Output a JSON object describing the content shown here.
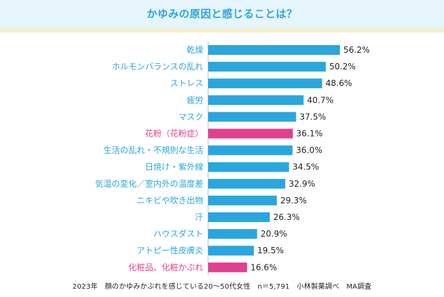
{
  "title": "かゆみの原因と感じることは？",
  "footnote": "2023年　顔のかゆみかぶれを感じている20～50代女性　n＝5,791　小林製薬調べ　MA調査",
  "colors": {
    "bar_default": "#2aa6dc",
    "bar_highlight": "#e0418e",
    "label_default": "#2aa6dc",
    "label_highlight": "#e0418e",
    "title": "#2aa6dc"
  },
  "chart_data": {
    "type": "bar",
    "orientation": "horizontal",
    "title": "かゆみの原因と感じることは？",
    "xlabel": "",
    "ylabel": "",
    "xlim": [
      0,
      100
    ],
    "grid": false,
    "unit": "%",
    "categories": [
      "乾燥",
      "ホルモンバランスの乱れ",
      "ストレス",
      "疲労",
      "マスク",
      "花粉（花粉症）",
      "生活の乱れ・不規則な生活",
      "日焼け・紫外線",
      "気温の変化／室内外の温度差",
      "ニキビや吹き出物",
      "汗",
      "ハウスダスト",
      "アトピー性皮膚炎",
      "化粧品、化粧かぶれ"
    ],
    "values": [
      56.2,
      50.2,
      48.6,
      40.7,
      37.5,
      36.1,
      36.0,
      34.5,
      32.9,
      29.3,
      26.3,
      20.9,
      19.5,
      16.6
    ],
    "value_labels": [
      "56.2%",
      "50.2%",
      "48.6%",
      "40.7%",
      "37.5%",
      "36.1%",
      "36.0%",
      "34.5%",
      "32.9%",
      "29.3%",
      "26.3%",
      "20.9%",
      "19.5%",
      "16.6%"
    ],
    "highlighted": [
      "花粉（花粉症）",
      "化粧品、化粧かぶれ"
    ]
  }
}
